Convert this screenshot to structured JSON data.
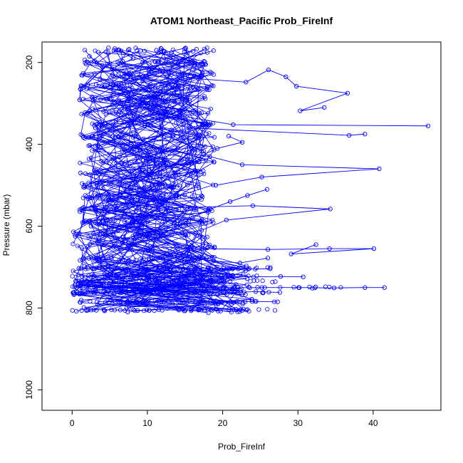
{
  "chart_data": {
    "type": "line",
    "title": "ATOM1 Northeast_Pacific Prob_FireInf",
    "xlabel": "Prob_FireInf",
    "ylabel": "Pressure (mbar)",
    "xlim": [
      -4,
      49
    ],
    "ylim": [
      1050,
      150
    ],
    "y_reversed": true,
    "grid": false,
    "legend": "none",
    "marker": "open-circle",
    "series_color": "#0000ff",
    "x_ticks": [
      0,
      10,
      20,
      30,
      40
    ],
    "y_ticks": [
      200,
      400,
      600,
      800,
      1000
    ],
    "x_tick_labels": [
      "0",
      "10",
      "20",
      "30",
      "40"
    ],
    "y_tick_labels": [
      "200",
      "400",
      "600",
      "800",
      "1000"
    ],
    "seed": 7,
    "summary_note": "Many vertical profiles; values concentrated between 0 and 25, with notable outliers near 47.3 at 355 mbar and 41.5 at 750 mbar.",
    "series": [
      {
        "values": [
          [
            6.2,
            170
          ],
          [
            8.1,
            190
          ],
          [
            5.3,
            215
          ],
          [
            9.4,
            245
          ],
          [
            12.1,
            270
          ],
          [
            10.5,
            300
          ],
          [
            14.2,
            330
          ],
          [
            21.4,
            352
          ],
          [
            47.3,
            355
          ]
        ]
      },
      {
        "values": [
          [
            2.3,
            185
          ],
          [
            4.1,
            210
          ],
          [
            3.7,
            240
          ],
          [
            6.8,
            262
          ],
          [
            9.2,
            290
          ],
          [
            7.5,
            312
          ],
          [
            11.4,
            340
          ],
          [
            15.6,
            360
          ],
          [
            36.8,
            378
          ],
          [
            38.9,
            375
          ]
        ]
      },
      {
        "values": [
          [
            11.2,
            170
          ],
          [
            13.4,
            190
          ],
          [
            10.2,
            220
          ],
          [
            16.8,
            240
          ],
          [
            23.1,
            248
          ],
          [
            26.1,
            218
          ],
          [
            28.4,
            235
          ],
          [
            29.8,
            258
          ],
          [
            36.6,
            275
          ],
          [
            30.3,
            318
          ],
          [
            33.5,
            310
          ]
        ]
      },
      {
        "values": [
          [
            3.1,
            360
          ],
          [
            5.4,
            380
          ],
          [
            8.9,
            400
          ],
          [
            12.7,
            415
          ],
          [
            18.3,
            430
          ],
          [
            22.6,
            450
          ],
          [
            40.8,
            460
          ],
          [
            25.2,
            480
          ],
          [
            19.1,
            500
          ]
        ]
      },
      {
        "values": [
          [
            4.6,
            520
          ],
          [
            7.9,
            540
          ],
          [
            13.1,
            555
          ],
          [
            24.0,
            550
          ],
          [
            34.3,
            558
          ],
          [
            20.5,
            585
          ],
          [
            17.2,
            610
          ],
          [
            11.3,
            630
          ]
        ]
      },
      {
        "values": [
          [
            6.7,
            640
          ],
          [
            10.4,
            650
          ],
          [
            16.2,
            655
          ],
          [
            26.0,
            657
          ],
          [
            34.2,
            655
          ],
          [
            40.1,
            655
          ],
          [
            29.1,
            668
          ],
          [
            32.4,
            645
          ]
        ]
      },
      {
        "values": [
          [
            0.6,
            750
          ],
          [
            3.2,
            748
          ],
          [
            8.4,
            752
          ],
          [
            14.3,
            750
          ],
          [
            20.1,
            751
          ],
          [
            25.2,
            750
          ],
          [
            30.1,
            750
          ],
          [
            34.8,
            751
          ],
          [
            38.9,
            750
          ],
          [
            41.5,
            750
          ]
        ]
      },
      {
        "values": [
          [
            0.2,
            762
          ],
          [
            2.1,
            760
          ],
          [
            5.6,
            765
          ],
          [
            9.3,
            762
          ],
          [
            13.8,
            768
          ],
          [
            17.6,
            760
          ],
          [
            21.2,
            762
          ],
          [
            24.4,
            760
          ],
          [
            27.6,
            762
          ]
        ]
      },
      {
        "values": [
          [
            1.3,
            723
          ],
          [
            4.8,
            722
          ],
          [
            9.9,
            724
          ],
          [
            15.2,
            723
          ],
          [
            19.8,
            722
          ],
          [
            24.1,
            724
          ],
          [
            27.7,
            723
          ],
          [
            30.7,
            724
          ]
        ]
      },
      {
        "values": [
          [
            0.9,
            703
          ],
          [
            3.6,
            702
          ],
          [
            7.2,
            705
          ],
          [
            11.6,
            703
          ],
          [
            14.8,
            704
          ],
          [
            18.4,
            702
          ],
          [
            23.4,
            705
          ],
          [
            26.3,
            704
          ]
        ]
      },
      {
        "values": [
          [
            2.0,
            805
          ],
          [
            4.2,
            804
          ],
          [
            6.4,
            805
          ],
          [
            8.7,
            806
          ],
          [
            11.5,
            804
          ],
          [
            14.2,
            805
          ],
          [
            17.6,
            805
          ]
        ]
      },
      {
        "values": [
          [
            3.3,
            785
          ],
          [
            6.5,
            784
          ],
          [
            9.2,
            786
          ],
          [
            12.8,
            784
          ],
          [
            17.1,
            785
          ],
          [
            21.5,
            786
          ],
          [
            23.9,
            784
          ],
          [
            27.3,
            785
          ]
        ]
      },
      {
        "values": [
          [
            1.6,
            680
          ],
          [
            5.2,
            675
          ],
          [
            9.7,
            690
          ],
          [
            13.6,
            672
          ],
          [
            18.8,
            685
          ],
          [
            22.3,
            690
          ],
          [
            26.0,
            678
          ]
        ]
      },
      {
        "values": [
          [
            2.5,
            600
          ],
          [
            4.4,
            620
          ],
          [
            7.1,
            635
          ],
          [
            10.1,
            660
          ],
          [
            12.4,
            690
          ],
          [
            16.3,
            710
          ],
          [
            14.0,
            735
          ],
          [
            10.8,
            760
          ],
          [
            8.2,
            780
          ]
        ]
      },
      {
        "values": [
          [
            1.1,
            470
          ],
          [
            4.0,
            490
          ],
          [
            6.9,
            505
          ],
          [
            9.5,
            525
          ],
          [
            12.0,
            545
          ],
          [
            10.4,
            570
          ],
          [
            8.0,
            590
          ],
          [
            6.1,
            610
          ],
          [
            3.4,
            640
          ]
        ]
      },
      {
        "values": [
          [
            7.4,
            280
          ],
          [
            9.8,
            300
          ],
          [
            12.5,
            320
          ],
          [
            15.1,
            340
          ],
          [
            13.2,
            365
          ],
          [
            10.9,
            385
          ],
          [
            8.7,
            405
          ],
          [
            6.3,
            430
          ]
        ]
      },
      {
        "values": [
          [
            20.8,
            380
          ],
          [
            22.6,
            395
          ],
          [
            19.3,
            410
          ],
          [
            17.5,
            425
          ],
          [
            15.4,
            445
          ],
          [
            13.7,
            470
          ],
          [
            11.6,
            495
          ]
        ]
      },
      {
        "values": [
          [
            25.9,
            510
          ],
          [
            23.3,
            525
          ],
          [
            21.0,
            540
          ],
          [
            18.1,
            560
          ],
          [
            16.0,
            580
          ],
          [
            13.9,
            600
          ],
          [
            12.1,
            620
          ]
        ]
      }
    ]
  }
}
